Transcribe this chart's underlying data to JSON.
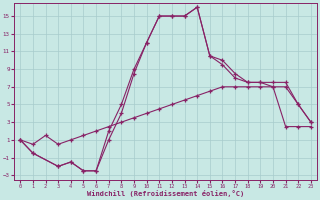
{
  "xlabel": "Windchill (Refroidissement éolien,°C)",
  "background_color": "#c8e8e4",
  "grid_color": "#a8cccc",
  "line_color": "#882266",
  "xlim": [
    -0.5,
    23.5
  ],
  "ylim": [
    -3.5,
    16.5
  ],
  "xticks": [
    0,
    1,
    2,
    3,
    4,
    5,
    6,
    7,
    8,
    9,
    10,
    11,
    12,
    13,
    14,
    15,
    16,
    17,
    18,
    19,
    20,
    21,
    22,
    23
  ],
  "yticks": [
    -3,
    -1,
    1,
    3,
    5,
    7,
    9,
    11,
    13,
    15
  ],
  "line1_x": [
    0,
    1,
    2,
    3,
    4,
    5,
    6,
    7,
    8,
    9,
    10,
    11,
    12,
    13,
    14,
    15,
    16,
    17,
    18,
    19,
    20,
    21,
    22,
    23
  ],
  "line1_y": [
    1.0,
    0.5,
    1.5,
    0.5,
    1.0,
    1.5,
    2.0,
    2.5,
    3.0,
    3.5,
    4.0,
    4.5,
    5.0,
    5.5,
    6.0,
    6.5,
    7.0,
    7.0,
    7.0,
    7.0,
    7.0,
    2.5,
    2.5,
    2.5
  ],
  "line2_x": [
    0,
    1,
    3,
    4,
    5,
    6,
    7,
    8,
    9,
    10,
    11,
    12,
    13,
    14,
    15,
    16,
    17,
    18,
    19,
    20,
    21,
    22,
    23
  ],
  "line2_y": [
    1.0,
    -0.5,
    -2.0,
    -1.5,
    -2.5,
    -2.5,
    2.0,
    5.0,
    9.0,
    12.0,
    15.0,
    15.0,
    15.0,
    16.0,
    10.5,
    10.0,
    8.5,
    7.5,
    7.5,
    7.0,
    7.0,
    5.0,
    3.0
  ],
  "line3_x": [
    0,
    1,
    3,
    4,
    5,
    6,
    7,
    8,
    9,
    10,
    11,
    12,
    13,
    14,
    15,
    16,
    17,
    18,
    19,
    20,
    21,
    22,
    23
  ],
  "line3_y": [
    1.0,
    -0.5,
    -2.0,
    -1.5,
    -2.5,
    -2.5,
    1.0,
    4.0,
    8.5,
    12.0,
    15.0,
    15.0,
    15.0,
    16.0,
    10.5,
    9.5,
    8.0,
    7.5,
    7.5,
    7.5,
    7.5,
    5.0,
    3.0
  ]
}
